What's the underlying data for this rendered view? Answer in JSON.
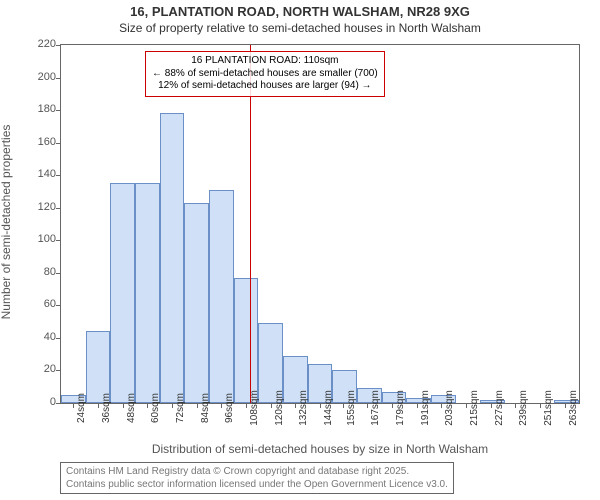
{
  "title_main": "16, PLANTATION ROAD, NORTH WALSHAM, NR28 9XG",
  "title_sub": "Size of property relative to semi-detached houses in North Walsham",
  "y_label": "Number of semi-detached properties",
  "x_label": "Distribution of semi-detached houses by size in North Walsham",
  "footer_line1": "Contains HM Land Registry data © Crown copyright and database right 2025.",
  "footer_line2": "Contains public sector information licensed under the Open Government Licence v3.0.",
  "annotation": {
    "line1": "16 PLANTATION ROAD: 110sqm",
    "line2": "← 88% of semi-detached houses are smaller (700)",
    "line3": "12% of semi-detached houses are larger (94) →",
    "border_color": "#cc0000"
  },
  "reference_line": {
    "x_value": 110,
    "color": "#cc0000"
  },
  "chart": {
    "type": "histogram",
    "background_color": "#ffffff",
    "plot_border_color": "#666666",
    "bar_fill": "#cfe0f7",
    "bar_border": "#6b8fc7",
    "y_axis": {
      "min": 0,
      "max": 220,
      "ticks": [
        0,
        20,
        40,
        60,
        80,
        100,
        120,
        140,
        160,
        180,
        200,
        220
      ],
      "tick_fontsize": 11,
      "tick_color": "#555555"
    },
    "x_axis": {
      "min": 18,
      "max": 270,
      "bin_width": 12,
      "tick_labels": [
        "24sqm",
        "36sqm",
        "48sqm",
        "60sqm",
        "72sqm",
        "84sqm",
        "96sqm",
        "108sqm",
        "120sqm",
        "132sqm",
        "144sqm",
        "155sqm",
        "167sqm",
        "179sqm",
        "191sqm",
        "203sqm",
        "215sqm",
        "227sqm",
        "239sqm",
        "251sqm",
        "263sqm"
      ],
      "tick_centers": [
        24,
        36,
        48,
        60,
        72,
        84,
        96,
        108,
        120,
        132,
        144,
        155,
        167,
        179,
        191,
        203,
        215,
        227,
        239,
        251,
        263
      ],
      "tick_fontsize": 10,
      "tick_color": "#333333"
    },
    "bins": [
      {
        "start": 18,
        "value": 5
      },
      {
        "start": 30,
        "value": 44
      },
      {
        "start": 42,
        "value": 135
      },
      {
        "start": 54,
        "value": 135
      },
      {
        "start": 66,
        "value": 178
      },
      {
        "start": 78,
        "value": 123
      },
      {
        "start": 90,
        "value": 131
      },
      {
        "start": 102,
        "value": 77
      },
      {
        "start": 114,
        "value": 49
      },
      {
        "start": 126,
        "value": 29
      },
      {
        "start": 138,
        "value": 24
      },
      {
        "start": 150,
        "value": 20
      },
      {
        "start": 162,
        "value": 9
      },
      {
        "start": 174,
        "value": 7
      },
      {
        "start": 186,
        "value": 3
      },
      {
        "start": 198,
        "value": 5
      },
      {
        "start": 210,
        "value": 0
      },
      {
        "start": 222,
        "value": 2
      },
      {
        "start": 234,
        "value": 0
      },
      {
        "start": 246,
        "value": 0
      },
      {
        "start": 258,
        "value": 2
      }
    ]
  }
}
